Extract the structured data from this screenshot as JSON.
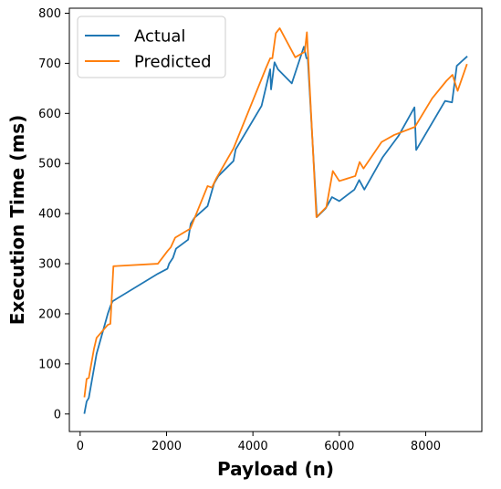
{
  "chart_data": {
    "type": "line",
    "title": "",
    "xlabel": "Payload (n)",
    "ylabel": "Execution Time (ms)",
    "xlim": [
      -250,
      9300
    ],
    "ylim": [
      -35,
      810
    ],
    "xticks": [
      0,
      2000,
      4000,
      6000,
      8000
    ],
    "yticks": [
      0,
      100,
      200,
      300,
      400,
      500,
      600,
      700,
      800
    ],
    "grid": false,
    "legend": "top-left",
    "series": [
      {
        "name": "Actual",
        "color": "#1f77b4",
        "points": [
          [
            100,
            2
          ],
          [
            150,
            25
          ],
          [
            200,
            32
          ],
          [
            380,
            120
          ],
          [
            640,
            200
          ],
          [
            700,
            215
          ],
          [
            750,
            225
          ],
          [
            1800,
            280
          ],
          [
            2020,
            290
          ],
          [
            2060,
            300
          ],
          [
            2150,
            312
          ],
          [
            2220,
            330
          ],
          [
            2500,
            348
          ],
          [
            2560,
            380
          ],
          [
            2650,
            392
          ],
          [
            2950,
            415
          ],
          [
            3100,
            460
          ],
          [
            3200,
            475
          ],
          [
            3550,
            505
          ],
          [
            3600,
            528
          ],
          [
            4200,
            615
          ],
          [
            4400,
            688
          ],
          [
            4420,
            648
          ],
          [
            4500,
            702
          ],
          [
            4580,
            688
          ],
          [
            4900,
            660
          ],
          [
            5180,
            733
          ],
          [
            5240,
            710
          ],
          [
            5270,
            710
          ],
          [
            5480,
            393
          ],
          [
            5680,
            410
          ],
          [
            5830,
            433
          ],
          [
            6000,
            425
          ],
          [
            6350,
            448
          ],
          [
            6460,
            467
          ],
          [
            6580,
            448
          ],
          [
            7000,
            512
          ],
          [
            7370,
            555
          ],
          [
            7740,
            612
          ],
          [
            7780,
            527
          ],
          [
            8450,
            625
          ],
          [
            8610,
            622
          ],
          [
            8720,
            695
          ],
          [
            8950,
            713
          ]
        ]
      },
      {
        "name": "Predicted",
        "color": "#ff7f0e",
        "points": [
          [
            100,
            35
          ],
          [
            150,
            70
          ],
          [
            200,
            72
          ],
          [
            320,
            130
          ],
          [
            380,
            152
          ],
          [
            640,
            178
          ],
          [
            700,
            180
          ],
          [
            770,
            295
          ],
          [
            1800,
            300
          ],
          [
            2020,
            325
          ],
          [
            2100,
            333
          ],
          [
            2200,
            352
          ],
          [
            2550,
            370
          ],
          [
            2950,
            455
          ],
          [
            3050,
            452
          ],
          [
            3150,
            470
          ],
          [
            3550,
            530
          ],
          [
            4300,
            690
          ],
          [
            4400,
            710
          ],
          [
            4450,
            710
          ],
          [
            4530,
            760
          ],
          [
            4620,
            770
          ],
          [
            4980,
            712
          ],
          [
            5200,
            723
          ],
          [
            5250,
            762
          ],
          [
            5470,
            393
          ],
          [
            5700,
            413
          ],
          [
            5850,
            485
          ],
          [
            6000,
            465
          ],
          [
            6370,
            475
          ],
          [
            6470,
            503
          ],
          [
            6560,
            490
          ],
          [
            6980,
            543
          ],
          [
            7270,
            557
          ],
          [
            7750,
            573
          ],
          [
            8150,
            630
          ],
          [
            8480,
            665
          ],
          [
            8620,
            677
          ],
          [
            8740,
            645
          ],
          [
            8950,
            697
          ]
        ]
      }
    ]
  }
}
